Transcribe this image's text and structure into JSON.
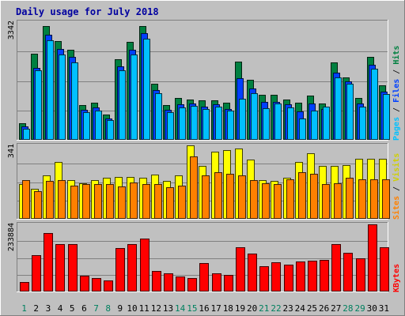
{
  "chart_data": {
    "type": "bar",
    "title": "Daily usage for July 2018",
    "categories": [
      "1",
      "2",
      "3",
      "4",
      "5",
      "6",
      "7",
      "8",
      "9",
      "10",
      "11",
      "12",
      "13",
      "14",
      "15",
      "16",
      "17",
      "18",
      "19",
      "20",
      "21",
      "22",
      "23",
      "24",
      "25",
      "26",
      "27",
      "28",
      "29",
      "30",
      "31"
    ],
    "weekend_days": [
      "1",
      "7",
      "8",
      "14",
      "15",
      "21",
      "22",
      "28",
      "29"
    ],
    "panels": [
      {
        "id": "pages_files_hits",
        "max_label": "3342",
        "ymax": 3342,
        "right_labels": [
          {
            "text": "Hits",
            "color": "#008040"
          },
          {
            "text": "Files",
            "color": "#0040ff"
          },
          {
            "text": "Pages",
            "color": "#00c0ff"
          }
        ],
        "separator": " / ",
        "series": [
          {
            "name": "Hits",
            "color": "#008040",
            "values": [
              460,
              2450,
              3240,
              2800,
              2560,
              980,
              1050,
              720,
              2280,
              2790,
              3220,
              1600,
              980,
              1180,
              1140,
              1120,
              1120,
              1060,
              2230,
              1700,
              1280,
              1270,
              1140,
              1050,
              1260,
              1030,
              2200,
              1770,
              1190,
              2360,
              1550
            ]
          },
          {
            "name": "Files",
            "color": "#0040ff",
            "values": [
              380,
              2050,
              2980,
              2580,
              2350,
              860,
              930,
              610,
              2080,
              2550,
              3020,
              1420,
              860,
              1000,
              1040,
              950,
              1000,
              880,
              1760,
              1460,
              1080,
              1070,
              1000,
              800,
              1040,
              880,
              1900,
              1660,
              1030,
              2140,
              1370
            ]
          },
          {
            "name": "Pages",
            "color": "#00c0ff",
            "values": [
              310,
              1980,
              2820,
              2430,
              2200,
              780,
              840,
              560,
              1970,
              2430,
              2880,
              1320,
              790,
              930,
              970,
              870,
              940,
              820,
              1170,
              1330,
              900,
              1040,
              930,
              610,
              840,
              950,
              1770,
              1590,
              940,
              2010,
              1290
            ]
          }
        ]
      },
      {
        "id": "visits_sites",
        "max_label": "341",
        "ymax": 341,
        "right_labels": [
          {
            "text": "Visits",
            "color": "#d0d000"
          },
          {
            "text": "Sites",
            "color": "#ff8000"
          }
        ],
        "separator": " / ",
        "series": [
          {
            "name": "Visits",
            "color": "#ffff00",
            "values": [
              160,
              140,
              200,
              265,
              180,
              165,
              180,
              190,
              195,
              195,
              190,
              205,
              175,
              200,
              340,
              245,
              310,
              320,
              325,
              275,
              180,
              175,
              190,
              265,
              305,
              245,
              245,
              250,
              280,
              280,
              280
            ]
          },
          {
            "name": "Sites",
            "color": "#ff8000",
            "values": [
              180,
              130,
              175,
              180,
              155,
              160,
              160,
              160,
              150,
              170,
              160,
              160,
              145,
              155,
              290,
              200,
              215,
              210,
              200,
              180,
              165,
              160,
              185,
              215,
              210,
              160,
              165,
              190,
              185,
              185,
              185
            ]
          }
        ]
      },
      {
        "id": "kbytes",
        "max_label": "233884",
        "ymax": 233884,
        "right_labels": [
          {
            "text": "KBytes",
            "color": "#ff0000"
          }
        ],
        "separator": " / ",
        "series": [
          {
            "name": "KBytes",
            "color": "#ff0000",
            "values": [
              32000,
              126000,
              204000,
              164000,
              166000,
              56000,
              47000,
              38000,
              150000,
              165000,
              183000,
              71000,
              62000,
              51000,
              48000,
              100000,
              62000,
              57000,
              154000,
              131000,
              88000,
              101000,
              93000,
              104000,
              107000,
              109000,
              165000,
              134000,
              115000,
              233884,
              155000
            ]
          }
        ]
      }
    ]
  }
}
